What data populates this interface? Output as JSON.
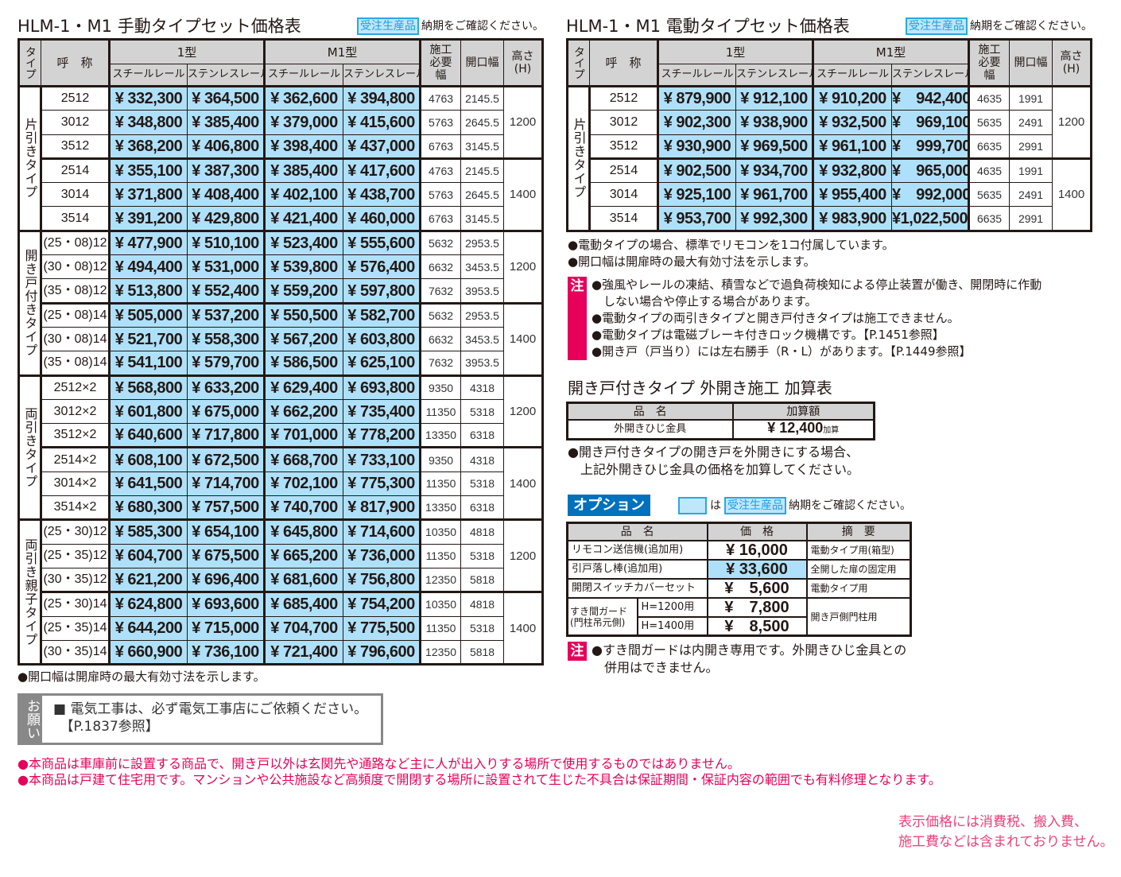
{
  "manual": {
    "title": "HLM-1・M1 手動タイプセット価格表",
    "badge": "受注生産品",
    "nouki": "納期をご確認ください。",
    "headers": {
      "type": "タイプ",
      "name": "呼　称",
      "type1": "1型",
      "typeM1": "M1型",
      "steel": "スチールレール",
      "stainless": "ステンレスレール",
      "sekou": "施工必要幅",
      "kaiko": "開口幅",
      "height": "高さ(H)"
    },
    "groups": [
      {
        "type": "片引きタイプ",
        "subgroups": [
          {
            "height": "1200",
            "rows": [
              {
                "name": "2512",
                "prices": [
                  "¥ 332,300",
                  "¥ 364,500",
                  "¥ 362,600",
                  "¥ 394,800"
                ],
                "sekou": "4763",
                "kaiko": "2145.5"
              },
              {
                "name": "3012",
                "prices": [
                  "¥ 348,800",
                  "¥ 385,400",
                  "¥ 379,000",
                  "¥ 415,600"
                ],
                "sekou": "5763",
                "kaiko": "2645.5"
              },
              {
                "name": "3512",
                "prices": [
                  "¥ 368,200",
                  "¥ 406,800",
                  "¥ 398,400",
                  "¥ 437,000"
                ],
                "sekou": "6763",
                "kaiko": "3145.5"
              }
            ]
          },
          {
            "height": "1400",
            "rows": [
              {
                "name": "2514",
                "prices": [
                  "¥ 355,100",
                  "¥ 387,300",
                  "¥ 385,400",
                  "¥ 417,600"
                ],
                "sekou": "4763",
                "kaiko": "2145.5"
              },
              {
                "name": "3014",
                "prices": [
                  "¥ 371,800",
                  "¥ 408,400",
                  "¥ 402,100",
                  "¥ 438,700"
                ],
                "sekou": "5763",
                "kaiko": "2645.5"
              },
              {
                "name": "3514",
                "prices": [
                  "¥ 391,200",
                  "¥ 429,800",
                  "¥ 421,400",
                  "¥ 460,000"
                ],
                "sekou": "6763",
                "kaiko": "3145.5"
              }
            ]
          }
        ]
      },
      {
        "type": "開き戸付きタイプ",
        "subgroups": [
          {
            "height": "1200",
            "rows": [
              {
                "name": "(25・08)12",
                "prices": [
                  "¥ 477,900",
                  "¥ 510,100",
                  "¥ 523,400",
                  "¥ 555,600"
                ],
                "sekou": "5632",
                "kaiko": "2953.5"
              },
              {
                "name": "(30・08)12",
                "prices": [
                  "¥ 494,400",
                  "¥ 531,000",
                  "¥ 539,800",
                  "¥ 576,400"
                ],
                "sekou": "6632",
                "kaiko": "3453.5"
              },
              {
                "name": "(35・08)12",
                "prices": [
                  "¥ 513,800",
                  "¥ 552,400",
                  "¥ 559,200",
                  "¥ 597,800"
                ],
                "sekou": "7632",
                "kaiko": "3953.5"
              }
            ]
          },
          {
            "height": "1400",
            "rows": [
              {
                "name": "(25・08)14",
                "prices": [
                  "¥ 505,000",
                  "¥ 537,200",
                  "¥ 550,500",
                  "¥ 582,700"
                ],
                "sekou": "5632",
                "kaiko": "2953.5"
              },
              {
                "name": "(30・08)14",
                "prices": [
                  "¥ 521,700",
                  "¥ 558,300",
                  "¥ 567,200",
                  "¥ 603,800"
                ],
                "sekou": "6632",
                "kaiko": "3453.5"
              },
              {
                "name": "(35・08)14",
                "prices": [
                  "¥ 541,100",
                  "¥ 579,700",
                  "¥ 586,500",
                  "¥ 625,100"
                ],
                "sekou": "7632",
                "kaiko": "3953.5"
              }
            ]
          }
        ]
      },
      {
        "type": "両引きタイプ",
        "subgroups": [
          {
            "height": "1200",
            "rows": [
              {
                "name": "2512×2",
                "prices": [
                  "¥ 568,800",
                  "¥ 633,200",
                  "¥ 629,400",
                  "¥ 693,800"
                ],
                "sekou": "9350",
                "kaiko": "4318"
              },
              {
                "name": "3012×2",
                "prices": [
                  "¥ 601,800",
                  "¥ 675,000",
                  "¥ 662,200",
                  "¥ 735,400"
                ],
                "sekou": "11350",
                "kaiko": "5318"
              },
              {
                "name": "3512×2",
                "prices": [
                  "¥ 640,600",
                  "¥ 717,800",
                  "¥ 701,000",
                  "¥ 778,200"
                ],
                "sekou": "13350",
                "kaiko": "6318"
              }
            ]
          },
          {
            "height": "1400",
            "rows": [
              {
                "name": "2514×2",
                "prices": [
                  "¥ 608,100",
                  "¥ 672,500",
                  "¥ 668,700",
                  "¥ 733,100"
                ],
                "sekou": "9350",
                "kaiko": "4318"
              },
              {
                "name": "3014×2",
                "prices": [
                  "¥ 641,500",
                  "¥ 714,700",
                  "¥ 702,100",
                  "¥ 775,300"
                ],
                "sekou": "11350",
                "kaiko": "5318"
              },
              {
                "name": "3514×2",
                "prices": [
                  "¥ 680,300",
                  "¥ 757,500",
                  "¥ 740,700",
                  "¥ 817,900"
                ],
                "sekou": "13350",
                "kaiko": "6318"
              }
            ]
          }
        ]
      },
      {
        "type": "両引き親子タイプ",
        "subgroups": [
          {
            "height": "1200",
            "rows": [
              {
                "name": "(25・30)12",
                "prices": [
                  "¥ 585,300",
                  "¥ 654,100",
                  "¥ 645,800",
                  "¥ 714,600"
                ],
                "sekou": "10350",
                "kaiko": "4818"
              },
              {
                "name": "(25・35)12",
                "prices": [
                  "¥ 604,700",
                  "¥ 675,500",
                  "¥ 665,200",
                  "¥ 736,000"
                ],
                "sekou": "11350",
                "kaiko": "5318"
              },
              {
                "name": "(30・35)12",
                "prices": [
                  "¥ 621,200",
                  "¥ 696,400",
                  "¥ 681,600",
                  "¥ 756,800"
                ],
                "sekou": "12350",
                "kaiko": "5818"
              }
            ]
          },
          {
            "height": "1400",
            "rows": [
              {
                "name": "(25・30)14",
                "prices": [
                  "¥ 624,800",
                  "¥ 693,600",
                  "¥ 685,400",
                  "¥ 754,200"
                ],
                "sekou": "10350",
                "kaiko": "4818"
              },
              {
                "name": "(25・35)14",
                "prices": [
                  "¥ 644,200",
                  "¥ 715,000",
                  "¥ 704,700",
                  "¥ 775,500"
                ],
                "sekou": "11350",
                "kaiko": "5318"
              },
              {
                "name": "(30・35)14",
                "prices": [
                  "¥ 660,900",
                  "¥ 736,100",
                  "¥ 721,400",
                  "¥ 796,600"
                ],
                "sekou": "12350",
                "kaiko": "5818"
              }
            ]
          }
        ]
      }
    ],
    "note": "●開口幅は開扉時の最大有効寸法を示します。"
  },
  "electric": {
    "title": "HLM-1・M1 電動タイプセット価格表",
    "badge": "受注生産品",
    "nouki": "納期をご確認ください。",
    "groups": [
      {
        "type": "片引きタイプ",
        "subgroups": [
          {
            "height": "1200",
            "rows": [
              {
                "name": "2512",
                "prices": [
                  "¥ 879,900",
                  "¥ 912,100",
                  "¥ 910,200",
                  "¥　942,400"
                ],
                "sekou": "4635",
                "kaiko": "1991"
              },
              {
                "name": "3012",
                "prices": [
                  "¥ 902,300",
                  "¥ 938,900",
                  "¥ 932,500",
                  "¥　969,100"
                ],
                "sekou": "5635",
                "kaiko": "2491"
              },
              {
                "name": "3512",
                "prices": [
                  "¥ 930,900",
                  "¥ 969,500",
                  "¥ 961,100",
                  "¥　999,700"
                ],
                "sekou": "6635",
                "kaiko": "2991"
              }
            ]
          },
          {
            "height": "1400",
            "rows": [
              {
                "name": "2514",
                "prices": [
                  "¥ 902,500",
                  "¥ 934,700",
                  "¥ 932,800",
                  "¥　965,000"
                ],
                "sekou": "4635",
                "kaiko": "1991"
              },
              {
                "name": "3014",
                "prices": [
                  "¥ 925,100",
                  "¥ 961,700",
                  "¥ 955,400",
                  "¥　992,000"
                ],
                "sekou": "5635",
                "kaiko": "2491"
              },
              {
                "name": "3514",
                "prices": [
                  "¥ 953,700",
                  "¥ 992,300",
                  "¥ 983,900",
                  "¥1,022,500"
                ],
                "sekou": "6635",
                "kaiko": "2991"
              }
            ]
          }
        ]
      }
    ],
    "notes": [
      "●電動タイプの場合、標準でリモコンを1コ付属しています。",
      "●開口幅は開扉時の最大有効寸法を示します。"
    ],
    "caution_label": "注",
    "cautions": [
      "●強風やレールの凍結、積雪などで過負荷検知による停止装置が働き、開閉時に作動",
      "　しない場合や停止する場合があります。",
      "●電動タイプの両引きタイプと開き戸付きタイプは施工できません。",
      "●電動タイプは電磁ブレーキ付きロック機構です。【P.1451参照】",
      "●開き戸（戸当り）には左右勝手（R・L）があります。【P.1449参照】"
    ]
  },
  "addon": {
    "title": "開き戸付きタイプ 外開き施工 加算表",
    "headers": [
      "品　名",
      "加算額"
    ],
    "item": "外開きひじ金具",
    "price": "¥ 12,400",
    "suffix": "加算",
    "notes": [
      "●開き戸付きタイプの開き戸を外開きにする場合、",
      "　上記外開きひじ金具の価格を加算してください。"
    ]
  },
  "option": {
    "label": "オプション",
    "legend_text": "は",
    "badge": "受注生産品",
    "nouki": "納期をご確認ください。",
    "headers": [
      "品　名",
      "価　格",
      "摘　要"
    ],
    "rows": [
      {
        "name": "リモコン送信機(追加用)",
        "price": "¥ 16,000",
        "remark": "電動タイプ用(箱型)",
        "highlight": false
      },
      {
        "name": "引戸落し棒(追加用)",
        "price": "¥ 33,600",
        "remark": "全開した扉の固定用",
        "highlight": true
      },
      {
        "name": "開閉スイッチカバーセット",
        "price": "¥　5,600",
        "remark": "電動タイプ用",
        "highlight": false
      }
    ],
    "guard": {
      "name": "すき間ガード（門柱吊元側）",
      "name1": "すき間ガード",
      "name2": "(門柱吊元側)",
      "sizes": [
        {
          "label": "H=1200用",
          "price": "¥　7,800"
        },
        {
          "label": "H=1400用",
          "price": "¥　8,500"
        }
      ],
      "remark": "開き戸側門柱用"
    },
    "caution_label": "注",
    "cautions": [
      "●すき間ガードは内開き専用です。外開きひじ金具との",
      "　併用はできません。"
    ]
  },
  "request": {
    "label": "お願い",
    "lines": [
      "■ 電気工事は、必ず電気工事店にご依頼ください。",
      "　【P.1837参照】"
    ]
  },
  "footer": {
    "red_notes": [
      "●本商品は車庫前に設置する商品で、開き戸以外は玄関先や通路など主に人が出入りする場所で使用するものではありません。",
      "●本商品は戸建て住宅用です。マンションや公共施設など高頻度で開閉する場所に設置されて生じた不具合は保証期間・保証内容の範囲でも有料修理となります。"
    ],
    "tax_note": [
      "表示価格には消費税、搬入費、",
      "施工費などは含まれておりません。"
    ]
  },
  "colors": {
    "price_bg": "#aee1f9",
    "header_bg": "#d3d3d3",
    "accent_red": "#e6005a",
    "option_blue": "#0071bc",
    "badge_blue": "#29a8e0"
  }
}
